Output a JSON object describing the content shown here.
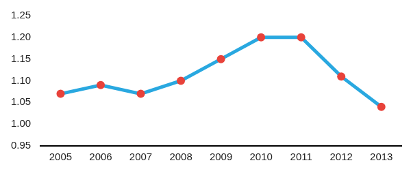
{
  "chart_data": {
    "type": "line",
    "categories": [
      "2005",
      "2006",
      "2007",
      "2008",
      "2009",
      "2010",
      "2011",
      "2012",
      "2013"
    ],
    "values": [
      1.07,
      1.09,
      1.07,
      1.1,
      1.15,
      1.2,
      1.2,
      1.11,
      1.04
    ],
    "color": "#29a8e0",
    "marker": "circle",
    "ylim": [
      0.95,
      1.25
    ],
    "yticks": [
      0.95,
      {
        "value": 1.0,
        "label": "1.00"
      },
      1.05,
      {
        "value": 1.1,
        "label": "1.10"
      },
      1.15,
      {
        "value": 1.2,
        "label": "1.20"
      },
      1.25
    ],
    "grid": false
  }
}
